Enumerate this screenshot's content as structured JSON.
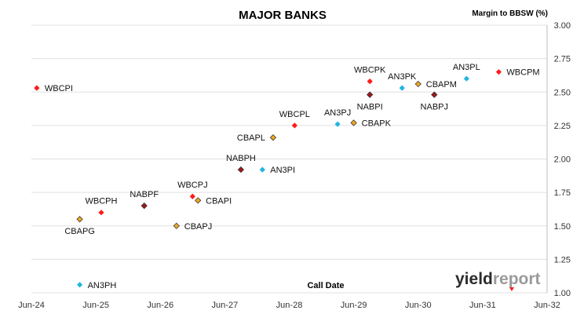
{
  "chart_data": {
    "type": "scatter",
    "title": "MAJOR BANKS",
    "ylabel": "Margin to BBSW (%)",
    "xlabel": "Call Date",
    "ylim": [
      1.0,
      3.0
    ],
    "yticks": [
      "1.00",
      "1.25",
      "1.50",
      "1.75",
      "2.00",
      "2.25",
      "2.50",
      "2.75",
      "3.00"
    ],
    "xticks": [
      "Jun-24",
      "Jun-25",
      "Jun-26",
      "Jun-27",
      "Jun-28",
      "Jun-29",
      "Jun-30",
      "Jun-31",
      "Jun-32"
    ],
    "grid": "horizontal",
    "colors": {
      "WBC": "#ff1a1a",
      "NAB": "#a31515",
      "CBA": "#f0a820",
      "ANZ": "#22b5e0",
      "grid": "#e0e0e0"
    },
    "points": [
      {
        "label": "WBCPI",
        "x": "2024-07",
        "y": 2.53,
        "issuer": "WBC",
        "pos": "right"
      },
      {
        "label": "AN3PH",
        "x": "2025-03",
        "y": 1.06,
        "issuer": "ANZ",
        "pos": "right"
      },
      {
        "label": "CBAPG",
        "x": "2025-03",
        "y": 1.55,
        "issuer": "CBA",
        "pos": "below"
      },
      {
        "label": "WBCPH",
        "x": "2025-07",
        "y": 1.6,
        "issuer": "WBC",
        "pos": "above"
      },
      {
        "label": "NABPF",
        "x": "2026-03",
        "y": 1.65,
        "issuer": "NAB",
        "pos": "above"
      },
      {
        "label": "CBAPJ",
        "x": "2026-09",
        "y": 1.5,
        "issuer": "CBA",
        "pos": "right"
      },
      {
        "label": "WBCPJ",
        "x": "2026-12",
        "y": 1.72,
        "issuer": "WBC",
        "pos": "above"
      },
      {
        "label": "CBAPI",
        "x": "2027-01",
        "y": 1.69,
        "issuer": "CBA",
        "pos": "right"
      },
      {
        "label": "NABPH",
        "x": "2027-09",
        "y": 1.92,
        "issuer": "NAB",
        "pos": "above"
      },
      {
        "label": "AN3PI",
        "x": "2028-01",
        "y": 1.92,
        "issuer": "ANZ",
        "pos": "right"
      },
      {
        "label": "CBAPL",
        "x": "2028-03",
        "y": 2.16,
        "issuer": "CBA",
        "pos": "left"
      },
      {
        "label": "WBCPL",
        "x": "2028-07",
        "y": 2.25,
        "issuer": "WBC",
        "pos": "above"
      },
      {
        "label": "AN3PJ",
        "x": "2029-03",
        "y": 2.26,
        "issuer": "ANZ",
        "pos": "above"
      },
      {
        "label": "CBAPK",
        "x": "2029-06",
        "y": 2.27,
        "issuer": "CBA",
        "pos": "right"
      },
      {
        "label": "WBCPK",
        "x": "2029-09",
        "y": 2.58,
        "issuer": "WBC",
        "pos": "above"
      },
      {
        "label": "NABPI",
        "x": "2029-09",
        "y": 2.48,
        "issuer": "NAB",
        "pos": "below"
      },
      {
        "label": "AN3PK",
        "x": "2030-03",
        "y": 2.53,
        "issuer": "ANZ",
        "pos": "above"
      },
      {
        "label": "CBAPM",
        "x": "2030-06",
        "y": 2.56,
        "issuer": "CBA",
        "pos": "right"
      },
      {
        "label": "NABPJ",
        "x": "2030-09",
        "y": 2.48,
        "issuer": "NAB",
        "pos": "below"
      },
      {
        "label": "AN3PL",
        "x": "2031-03",
        "y": 2.6,
        "issuer": "ANZ",
        "pos": "above"
      },
      {
        "label": "WBCPM",
        "x": "2031-09",
        "y": 2.65,
        "issuer": "WBC",
        "pos": "right"
      }
    ]
  },
  "logo": {
    "part1": "yield",
    "part2": "report"
  }
}
